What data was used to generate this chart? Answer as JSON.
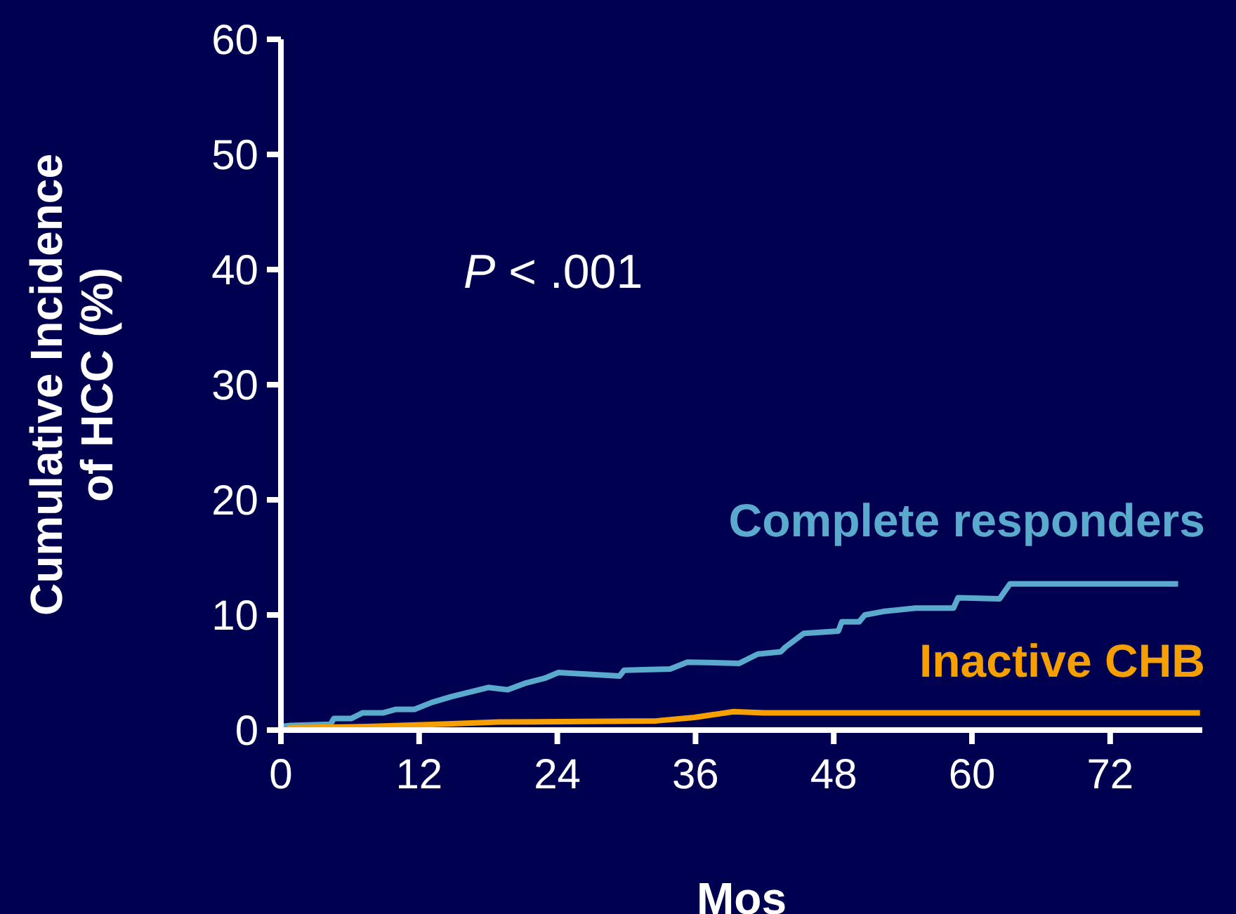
{
  "chart_data": {
    "type": "line",
    "xlabel": "Mos",
    "ylabel": "Cumulative Incidence of HCC (%)",
    "annotations": [
      "P < .001"
    ],
    "xlim": [
      0,
      80
    ],
    "xticks": [
      0,
      12,
      24,
      36,
      48,
      60,
      72
    ],
    "ylim": [
      0,
      60
    ],
    "yticks": [
      0,
      10,
      20,
      30,
      40,
      50,
      60
    ],
    "legend": false,
    "marker": "none",
    "line_style": "solid",
    "series": [
      {
        "name": "Complete responders",
        "color": "#5aaacd",
        "x": [
          0,
          0.8,
          4.3,
          4.6,
          6.1,
          7.1,
          8.9,
          10.0,
          11.6,
          13.1,
          14.8,
          18.0,
          19.7,
          21.3,
          22.9,
          24.1,
          29.4,
          29.8,
          33.8,
          35.3,
          39.8,
          41.4,
          43.4,
          43.8,
          45.4,
          48.4,
          48.7,
          50.2,
          50.7,
          52.3,
          55.1,
          58.4,
          58.8,
          62.4,
          63.3,
          77.9
        ],
        "values": [
          0.3,
          0.4,
          0.5,
          1.0,
          1.0,
          1.5,
          1.5,
          1.8,
          1.8,
          2.4,
          2.9,
          3.7,
          3.5,
          4.1,
          4.5,
          5.0,
          4.7,
          5.2,
          5.3,
          5.9,
          5.8,
          6.6,
          6.8,
          7.2,
          8.4,
          8.6,
          9.4,
          9.4,
          10.0,
          10.3,
          10.6,
          10.6,
          11.5,
          11.4,
          12.7,
          12.7
        ]
      },
      {
        "name": "Inactive CHB",
        "color": "#f5a000",
        "x": [
          0.6,
          7.5,
          13.6,
          18.9,
          32.6,
          35.9,
          39.3,
          42,
          79.8
        ],
        "values": [
          0.2,
          0.3,
          0.5,
          0.7,
          0.8,
          1.1,
          1.6,
          1.5,
          1.5
        ]
      }
    ]
  }
}
